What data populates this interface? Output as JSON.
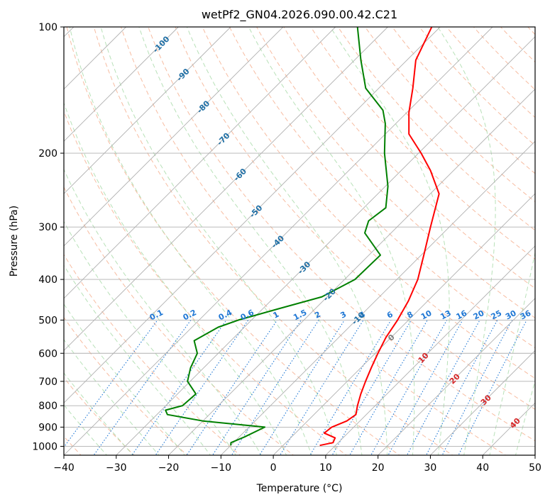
{
  "chart_data": {
    "type": "line",
    "title": "wetPf2_GN04.2026.090.00.42.C21",
    "xlabel": "Temperature (°C)",
    "ylabel": "Pressure (hPa)",
    "xlim": [
      -40,
      50
    ],
    "ylim": [
      1050,
      100
    ],
    "y_scale": "log",
    "grid": true,
    "x_ticks": [
      -40,
      -30,
      -20,
      -10,
      0,
      10,
      20,
      30,
      40,
      50
    ],
    "x_tick_labels": [
      "−40",
      "−30",
      "−20",
      "−10",
      "0",
      "10",
      "20",
      "30",
      "40",
      "50"
    ],
    "y_ticks": [
      100,
      200,
      300,
      400,
      500,
      600,
      700,
      800,
      900,
      1000
    ],
    "y_tick_labels": [
      "100",
      "200",
      "300",
      "400",
      "500",
      "600",
      "700",
      "800",
      "900",
      "1000"
    ],
    "series": [
      {
        "role": "temperature",
        "color": "#ff0000",
        "points": [
          [
            7.0,
            995
          ],
          [
            9.0,
            980
          ],
          [
            8.5,
            955
          ],
          [
            5.5,
            930
          ],
          [
            5.8,
            900
          ],
          [
            7.5,
            870
          ],
          [
            8.0,
            840
          ],
          [
            6.6,
            800
          ],
          [
            5.0,
            750
          ],
          [
            3.5,
            700
          ],
          [
            2.0,
            650
          ],
          [
            0.5,
            600
          ],
          [
            -1.0,
            550
          ],
          [
            -2.1,
            500
          ],
          [
            -3.7,
            450
          ],
          [
            -6.0,
            400
          ],
          [
            -9.5,
            350
          ],
          [
            -13.6,
            300
          ],
          [
            -18.3,
            250
          ],
          [
            -24.4,
            220
          ],
          [
            -29.5,
            200
          ],
          [
            -35.5,
            180
          ],
          [
            -39.6,
            160
          ],
          [
            -43.5,
            140
          ],
          [
            -48.3,
            120
          ],
          [
            -51.6,
            100
          ]
        ]
      },
      {
        "role": "dewpoint",
        "color": "#008000",
        "points": [
          [
            -10.0,
            995
          ],
          [
            -10.5,
            980
          ],
          [
            -9.0,
            950
          ],
          [
            -7.0,
            900
          ],
          [
            -20.0,
            870
          ],
          [
            -28.0,
            840
          ],
          [
            -29.2,
            820
          ],
          [
            -26.8,
            800
          ],
          [
            -26.5,
            750
          ],
          [
            -30.5,
            700
          ],
          [
            -32.5,
            650
          ],
          [
            -34.0,
            600
          ],
          [
            -37.0,
            560
          ],
          [
            -35.0,
            520
          ],
          [
            -32.5,
            500
          ],
          [
            -27.0,
            470
          ],
          [
            -21.0,
            440
          ],
          [
            -18.0,
            400
          ],
          [
            -17.8,
            350
          ],
          [
            -25.0,
            310
          ],
          [
            -26.6,
            290
          ],
          [
            -25.8,
            270
          ],
          [
            -29.5,
            240
          ],
          [
            -36.5,
            200
          ],
          [
            -42.0,
            170
          ],
          [
            -45.0,
            158
          ],
          [
            -52.5,
            140
          ],
          [
            -58.8,
            120
          ],
          [
            -65.8,
            100
          ]
        ]
      }
    ],
    "isotherm_labels": [
      {
        "text": "-100",
        "t": -100,
        "p": 110
      },
      {
        "text": "-90",
        "t": -90,
        "p": 130
      },
      {
        "text": "-80",
        "t": -80,
        "p": 155
      },
      {
        "text": "-70",
        "t": -70,
        "p": 185
      },
      {
        "text": "-60",
        "t": -60,
        "p": 225
      },
      {
        "text": "-50",
        "t": -50,
        "p": 275
      },
      {
        "text": "-40",
        "t": -40,
        "p": 325
      },
      {
        "text": "-30",
        "t": -30,
        "p": 375
      },
      {
        "text": "-20",
        "t": -20,
        "p": 435
      },
      {
        "text": "-10",
        "t": -10,
        "p": 495
      },
      {
        "text": "0",
        "t": 0,
        "p": 550
      },
      {
        "text": "10",
        "t": 10,
        "p": 615
      },
      {
        "text": "20",
        "t": 20,
        "p": 690
      },
      {
        "text": "30",
        "t": 30,
        "p": 775
      },
      {
        "text": "40",
        "t": 40,
        "p": 880
      }
    ],
    "mixing_ratio_labels": [
      "0.1",
      "0.2",
      "0.4",
      "0.6",
      "1",
      "1.5",
      "2",
      "3",
      "4",
      "6",
      "8",
      "10",
      "13",
      "16",
      "20",
      "25",
      "30",
      "36"
    ],
    "colors": {
      "temperature": "#ff0000",
      "dewpoint": "#008000",
      "isobar_grid": "#b0b0b0",
      "isotherm_grid": "#b0b0b0",
      "dry_adiabat": "#f4a582",
      "moist_adiabat": "#a6d9a6",
      "mixing_ratio": "#1f77d4",
      "isotherm_label_cold": "#1f6fa5",
      "isotherm_label_zero": "#808080",
      "isotherm_label_warm": "#d62728",
      "frame": "#000000"
    }
  }
}
